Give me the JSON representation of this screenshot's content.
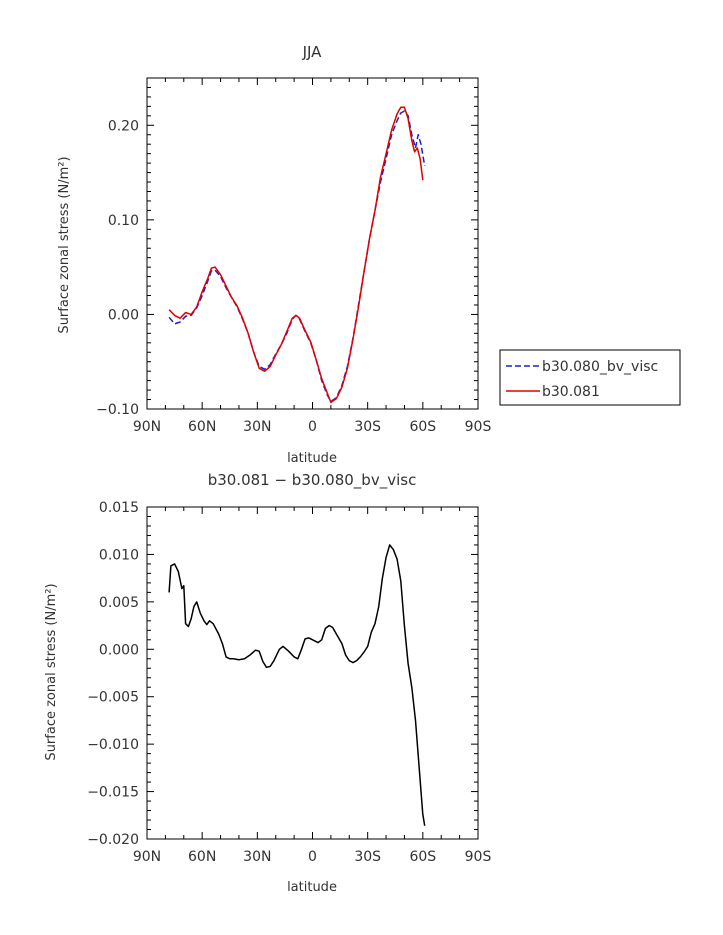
{
  "chart_data": [
    {
      "type": "line",
      "title": "JJA",
      "xlabel": "latitude",
      "ylabel": "Surface zonal stress (N/m²)",
      "xlim": [
        90,
        -90
      ],
      "ylim": [
        -0.1,
        0.25
      ],
      "x_ticks": [
        {
          "value": 90,
          "label": "90N"
        },
        {
          "value": 60,
          "label": "60N"
        },
        {
          "value": 30,
          "label": "30N"
        },
        {
          "value": 0,
          "label": "0"
        },
        {
          "value": -30,
          "label": "30S"
        },
        {
          "value": -60,
          "label": "60S"
        },
        {
          "value": -90,
          "label": "90S"
        }
      ],
      "y_ticks": [
        {
          "value": -0.1,
          "label": "−0.10"
        },
        {
          "value": 0.0,
          "label": "0.00"
        },
        {
          "value": 0.1,
          "label": "0.10"
        },
        {
          "value": 0.2,
          "label": "0.20"
        }
      ],
      "legend_position": "right",
      "series": [
        {
          "name": "b30.080_bv_visc",
          "color": "#1f1fd0",
          "dash": "dashed",
          "points": [
            [
              78,
              -0.003
            ],
            [
              75,
              -0.01
            ],
            [
              72,
              -0.008
            ],
            [
              69,
              -0.002
            ],
            [
              66,
              -0.001
            ],
            [
              63,
              0.007
            ],
            [
              60,
              0.02
            ],
            [
              57,
              0.035
            ],
            [
              55,
              0.046
            ],
            [
              53,
              0.047
            ],
            [
              50,
              0.04
            ],
            [
              47,
              0.028
            ],
            [
              44,
              0.018
            ],
            [
              41,
              0.008
            ],
            [
              38,
              -0.005
            ],
            [
              35,
              -0.02
            ],
            [
              32,
              -0.04
            ],
            [
              29,
              -0.055
            ],
            [
              26,
              -0.058
            ],
            [
              23,
              -0.053
            ],
            [
              20,
              -0.042
            ],
            [
              17,
              -0.032
            ],
            [
              14,
              -0.02
            ],
            [
              11,
              -0.005
            ],
            [
              9,
              -0.001
            ],
            [
              7,
              -0.005
            ],
            [
              4,
              -0.018
            ],
            [
              1,
              -0.03
            ],
            [
              -2,
              -0.048
            ],
            [
              -5,
              -0.07
            ],
            [
              -8,
              -0.085
            ],
            [
              -10,
              -0.092
            ],
            [
              -13,
              -0.088
            ],
            [
              -16,
              -0.075
            ],
            [
              -19,
              -0.055
            ],
            [
              -22,
              -0.025
            ],
            [
              -25,
              0.01
            ],
            [
              -28,
              0.045
            ],
            [
              -31,
              0.08
            ],
            [
              -34,
              0.11
            ],
            [
              -37,
              0.14
            ],
            [
              -40,
              0.165
            ],
            [
              -43,
              0.19
            ],
            [
              -46,
              0.205
            ],
            [
              -48,
              0.213
            ],
            [
              -50,
              0.215
            ],
            [
              -52,
              0.21
            ],
            [
              -54,
              0.19
            ],
            [
              -56,
              0.176
            ],
            [
              -57.5,
              0.19
            ],
            [
              -59,
              0.18
            ],
            [
              -61,
              0.157
            ]
          ]
        },
        {
          "name": "b30.081",
          "color": "#e00000",
          "dash": "solid",
          "points": [
            [
              78,
              0.005
            ],
            [
              75,
              -0.001
            ],
            [
              72,
              -0.004
            ],
            [
              69,
              0.002
            ],
            [
              66,
              0.0
            ],
            [
              63,
              0.008
            ],
            [
              60,
              0.024
            ],
            [
              57,
              0.038
            ],
            [
              55,
              0.049
            ],
            [
              53,
              0.05
            ],
            [
              50,
              0.042
            ],
            [
              47,
              0.03
            ],
            [
              44,
              0.018
            ],
            [
              41,
              0.009
            ],
            [
              38,
              -0.004
            ],
            [
              35,
              -0.02
            ],
            [
              32,
              -0.04
            ],
            [
              29,
              -0.057
            ],
            [
              26,
              -0.06
            ],
            [
              23,
              -0.055
            ],
            [
              20,
              -0.043
            ],
            [
              17,
              -0.032
            ],
            [
              14,
              -0.018
            ],
            [
              11,
              -0.004
            ],
            [
              9,
              -0.001
            ],
            [
              7,
              -0.004
            ],
            [
              4,
              -0.017
            ],
            [
              1,
              -0.029
            ],
            [
              -2,
              -0.048
            ],
            [
              -5,
              -0.068
            ],
            [
              -8,
              -0.083
            ],
            [
              -10,
              -0.093
            ],
            [
              -13,
              -0.089
            ],
            [
              -16,
              -0.077
            ],
            [
              -19,
              -0.057
            ],
            [
              -22,
              -0.026
            ],
            [
              -25,
              0.008
            ],
            [
              -28,
              0.045
            ],
            [
              -31,
              0.08
            ],
            [
              -34,
              0.11
            ],
            [
              -37,
              0.145
            ],
            [
              -40,
              0.17
            ],
            [
              -43,
              0.195
            ],
            [
              -46,
              0.212
            ],
            [
              -48,
              0.219
            ],
            [
              -50,
              0.219
            ],
            [
              -52,
              0.207
            ],
            [
              -54,
              0.184
            ],
            [
              -55.5,
              0.172
            ],
            [
              -57,
              0.176
            ],
            [
              -58.5,
              0.165
            ],
            [
              -60,
              0.142
            ]
          ]
        }
      ]
    },
    {
      "type": "line",
      "title": "b30.081 − b30.080_bv_visc",
      "xlabel": "latitude",
      "ylabel": "Surface zonal stress (N/m²)",
      "xlim": [
        90,
        -90
      ],
      "ylim": [
        -0.02,
        0.015
      ],
      "x_ticks": [
        {
          "value": 90,
          "label": "90N"
        },
        {
          "value": 60,
          "label": "60N"
        },
        {
          "value": 30,
          "label": "30N"
        },
        {
          "value": 0,
          "label": "0"
        },
        {
          "value": -30,
          "label": "30S"
        },
        {
          "value": -60,
          "label": "60S"
        },
        {
          "value": -90,
          "label": "90S"
        }
      ],
      "y_ticks": [
        {
          "value": -0.02,
          "label": "−0.020"
        },
        {
          "value": -0.015,
          "label": "−0.015"
        },
        {
          "value": -0.01,
          "label": "−0.010"
        },
        {
          "value": -0.005,
          "label": "−0.005"
        },
        {
          "value": 0.0,
          "label": "0.000"
        },
        {
          "value": 0.005,
          "label": "0.005"
        },
        {
          "value": 0.01,
          "label": "0.010"
        },
        {
          "value": 0.015,
          "label": "0.015"
        }
      ],
      "series": [
        {
          "color": "#000000",
          "dash": "solid",
          "points": [
            [
              78,
              0.006
            ],
            [
              77,
              0.0088
            ],
            [
              75,
              0.009
            ],
            [
              73,
              0.0082
            ],
            [
              71,
              0.0064
            ],
            [
              70,
              0.0067
            ],
            [
              69,
              0.0027
            ],
            [
              67.5,
              0.0024
            ],
            [
              66,
              0.0032
            ],
            [
              64.5,
              0.0045
            ],
            [
              63,
              0.005
            ],
            [
              61,
              0.0038
            ],
            [
              59,
              0.003
            ],
            [
              57.5,
              0.0026
            ],
            [
              56,
              0.003
            ],
            [
              54,
              0.0027
            ],
            [
              51,
              0.0016
            ],
            [
              49,
              0.0006
            ],
            [
              47,
              -0.0008
            ],
            [
              45,
              -0.001
            ],
            [
              43,
              -0.001
            ],
            [
              40,
              -0.0011
            ],
            [
              37,
              -0.001
            ],
            [
              34,
              -0.0006
            ],
            [
              31,
              -0.0001
            ],
            [
              29,
              -0.0002
            ],
            [
              27,
              -0.0013
            ],
            [
              25,
              -0.0019
            ],
            [
              23,
              -0.0018
            ],
            [
              21,
              -0.0012
            ],
            [
              18,
              0.0
            ],
            [
              16,
              0.0003
            ],
            [
              13,
              -0.0002
            ],
            [
              10,
              -0.0008
            ],
            [
              8,
              -0.001
            ],
            [
              6,
              0.0
            ],
            [
              4,
              0.0011
            ],
            [
              2,
              0.0012
            ],
            [
              -1,
              0.0009
            ],
            [
              -3,
              0.0007
            ],
            [
              -5,
              0.001
            ],
            [
              -7,
              0.0022
            ],
            [
              -9,
              0.0025
            ],
            [
              -11,
              0.0023
            ],
            [
              -13,
              0.0016
            ],
            [
              -16,
              0.0006
            ],
            [
              -18,
              -0.0006
            ],
            [
              -20,
              -0.0012
            ],
            [
              -22,
              -0.0014
            ],
            [
              -24,
              -0.0012
            ],
            [
              -26,
              -0.0008
            ],
            [
              -28,
              -0.0003
            ],
            [
              -30,
              0.0003
            ],
            [
              -32,
              0.0018
            ],
            [
              -34,
              0.0027
            ],
            [
              -36,
              0.0045
            ],
            [
              -38,
              0.0075
            ],
            [
              -40,
              0.0097
            ],
            [
              -42,
              0.011
            ],
            [
              -44,
              0.0105
            ],
            [
              -46,
              0.0095
            ],
            [
              -48,
              0.0072
            ],
            [
              -50,
              0.0025
            ],
            [
              -52,
              -0.0015
            ],
            [
              -54,
              -0.004
            ],
            [
              -56,
              -0.0075
            ],
            [
              -58,
              -0.0125
            ],
            [
              -60,
              -0.0174
            ],
            [
              -61,
              -0.0186
            ]
          ]
        }
      ]
    }
  ]
}
